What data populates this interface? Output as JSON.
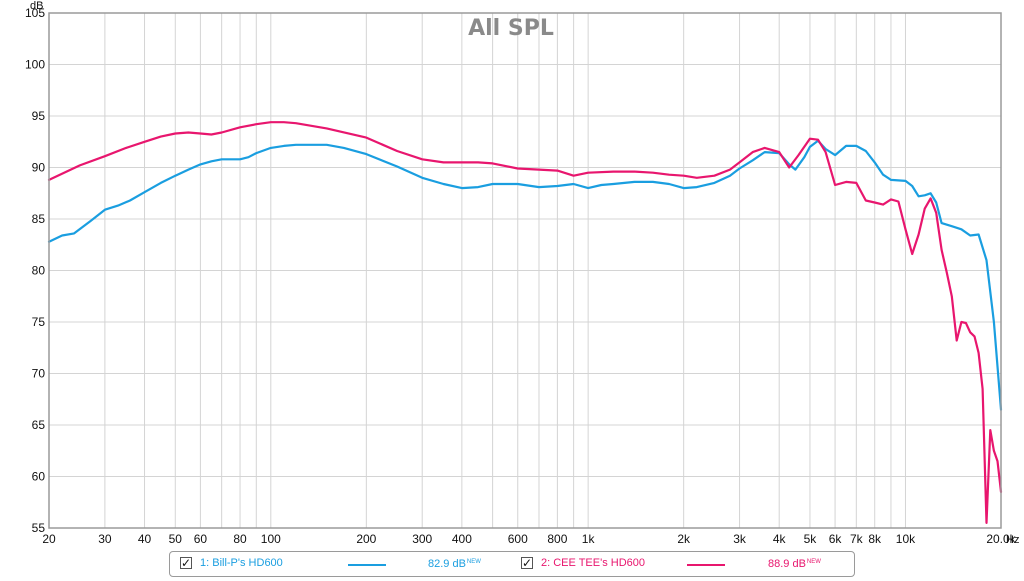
{
  "chart_data": {
    "type": "line",
    "title": "All SPL",
    "ylabel": "dB",
    "xlabel": "Hz",
    "xscale": "log",
    "xlim": [
      20,
      20000
    ],
    "ylim": [
      55,
      105
    ],
    "grid": true,
    "y_ticks": [
      "55",
      "60",
      "65",
      "70",
      "75",
      "80",
      "85",
      "90",
      "95",
      "100",
      "105"
    ],
    "x_ticks": [
      {
        "v": 20,
        "label": "20"
      },
      {
        "v": 30,
        "label": "30"
      },
      {
        "v": 40,
        "label": "40"
      },
      {
        "v": 50,
        "label": "50"
      },
      {
        "v": 60,
        "label": "60"
      },
      {
        "v": 80,
        "label": "80"
      },
      {
        "v": 100,
        "label": "100"
      },
      {
        "v": 200,
        "label": "200"
      },
      {
        "v": 300,
        "label": "300"
      },
      {
        "v": 400,
        "label": "400"
      },
      {
        "v": 600,
        "label": "600"
      },
      {
        "v": 800,
        "label": "800"
      },
      {
        "v": 1000,
        "label": "1k"
      },
      {
        "v": 2000,
        "label": "2k"
      },
      {
        "v": 3000,
        "label": "3k"
      },
      {
        "v": 4000,
        "label": "4k"
      },
      {
        "v": 5000,
        "label": "5k"
      },
      {
        "v": 6000,
        "label": "6k"
      },
      {
        "v": 7000,
        "label": "7k"
      },
      {
        "v": 8000,
        "label": "8k"
      },
      {
        "v": 10000,
        "label": "10k"
      },
      {
        "v": 20000,
        "label": "20.0k"
      }
    ],
    "series": [
      {
        "name": "1: Bill-P's HD600",
        "color": "#1a9ee0",
        "offset_label": "82.9 dB",
        "x": [
          20,
          22,
          24,
          27,
          30,
          33,
          36,
          40,
          45,
          50,
          55,
          60,
          65,
          70,
          75,
          80,
          85,
          90,
          100,
          110,
          120,
          130,
          150,
          170,
          200,
          250,
          300,
          350,
          400,
          450,
          500,
          600,
          700,
          800,
          900,
          1000,
          1100,
          1200,
          1400,
          1600,
          1800,
          2000,
          2200,
          2500,
          2800,
          3000,
          3300,
          3600,
          4000,
          4300,
          4500,
          4800,
          5000,
          5300,
          5600,
          6000,
          6500,
          7000,
          7500,
          8000,
          8500,
          9000,
          10000,
          10500,
          11000,
          11500,
          12000,
          12500,
          13000,
          14000,
          15000,
          16000,
          17000,
          18000,
          19000,
          20000
        ],
        "y": [
          82.8,
          83.4,
          83.6,
          84.8,
          85.9,
          86.3,
          86.8,
          87.6,
          88.5,
          89.2,
          89.8,
          90.3,
          90.6,
          90.8,
          90.8,
          90.8,
          91.0,
          91.4,
          91.9,
          92.1,
          92.2,
          92.2,
          92.2,
          91.9,
          91.3,
          90.1,
          89.0,
          88.4,
          88.0,
          88.1,
          88.4,
          88.4,
          88.1,
          88.2,
          88.4,
          88.0,
          88.3,
          88.4,
          88.6,
          88.6,
          88.4,
          88.0,
          88.1,
          88.5,
          89.2,
          89.9,
          90.7,
          91.5,
          91.4,
          90.3,
          89.8,
          91.0,
          92.0,
          92.6,
          91.8,
          91.2,
          92.1,
          92.1,
          91.6,
          90.5,
          89.3,
          88.8,
          88.7,
          88.2,
          87.2,
          87.3,
          87.5,
          86.6,
          84.6,
          84.3,
          84.0,
          83.4,
          83.5,
          81.0,
          75.0,
          66.5
        ]
      },
      {
        "name": "2: CEE TEE's HD600",
        "color": "#e8166e",
        "offset_label": "88.9 dB",
        "x": [
          20,
          25,
          30,
          35,
          40,
          45,
          50,
          55,
          60,
          65,
          70,
          80,
          90,
          100,
          110,
          120,
          150,
          200,
          250,
          300,
          350,
          400,
          450,
          500,
          600,
          700,
          800,
          900,
          1000,
          1200,
          1400,
          1600,
          1800,
          2000,
          2200,
          2500,
          2800,
          3000,
          3300,
          3600,
          4000,
          4300,
          4600,
          5000,
          5300,
          5600,
          6000,
          6500,
          7000,
          7500,
          8000,
          8500,
          9000,
          9500,
          10000,
          10500,
          11000,
          11500,
          12000,
          12500,
          13000,
          13500,
          14000,
          14500,
          15000,
          15500,
          16000,
          16500,
          17000,
          17500,
          18000,
          18500,
          19000,
          19500,
          20000
        ],
        "y": [
          88.8,
          90.2,
          91.1,
          91.9,
          92.5,
          93.0,
          93.3,
          93.4,
          93.3,
          93.2,
          93.4,
          93.9,
          94.2,
          94.4,
          94.4,
          94.3,
          93.8,
          92.9,
          91.6,
          90.8,
          90.5,
          90.5,
          90.5,
          90.4,
          89.9,
          89.8,
          89.7,
          89.2,
          89.5,
          89.6,
          89.6,
          89.5,
          89.3,
          89.2,
          89.0,
          89.2,
          89.8,
          90.5,
          91.5,
          91.9,
          91.5,
          90.0,
          91.2,
          92.8,
          92.7,
          91.5,
          88.3,
          88.6,
          88.5,
          86.8,
          86.6,
          86.4,
          86.9,
          86.7,
          84.0,
          81.6,
          83.5,
          86.0,
          87.0,
          85.6,
          82.0,
          79.8,
          77.5,
          73.2,
          75.0,
          74.9,
          74.0,
          73.6,
          72.0,
          68.5,
          55.5,
          64.5,
          62.5,
          61.5,
          58.5
        ]
      }
    ]
  },
  "legend": {
    "items": [
      {
        "checked": "✓",
        "name": "1: Bill-P's HD600",
        "value": "82.9 dB",
        "sup": "NEW",
        "color": "#1a9ee0"
      },
      {
        "checked": "✓",
        "name": "2: CEE TEE's HD600",
        "value": "88.9 dB",
        "sup": "NEW",
        "color": "#e8166e"
      }
    ]
  }
}
